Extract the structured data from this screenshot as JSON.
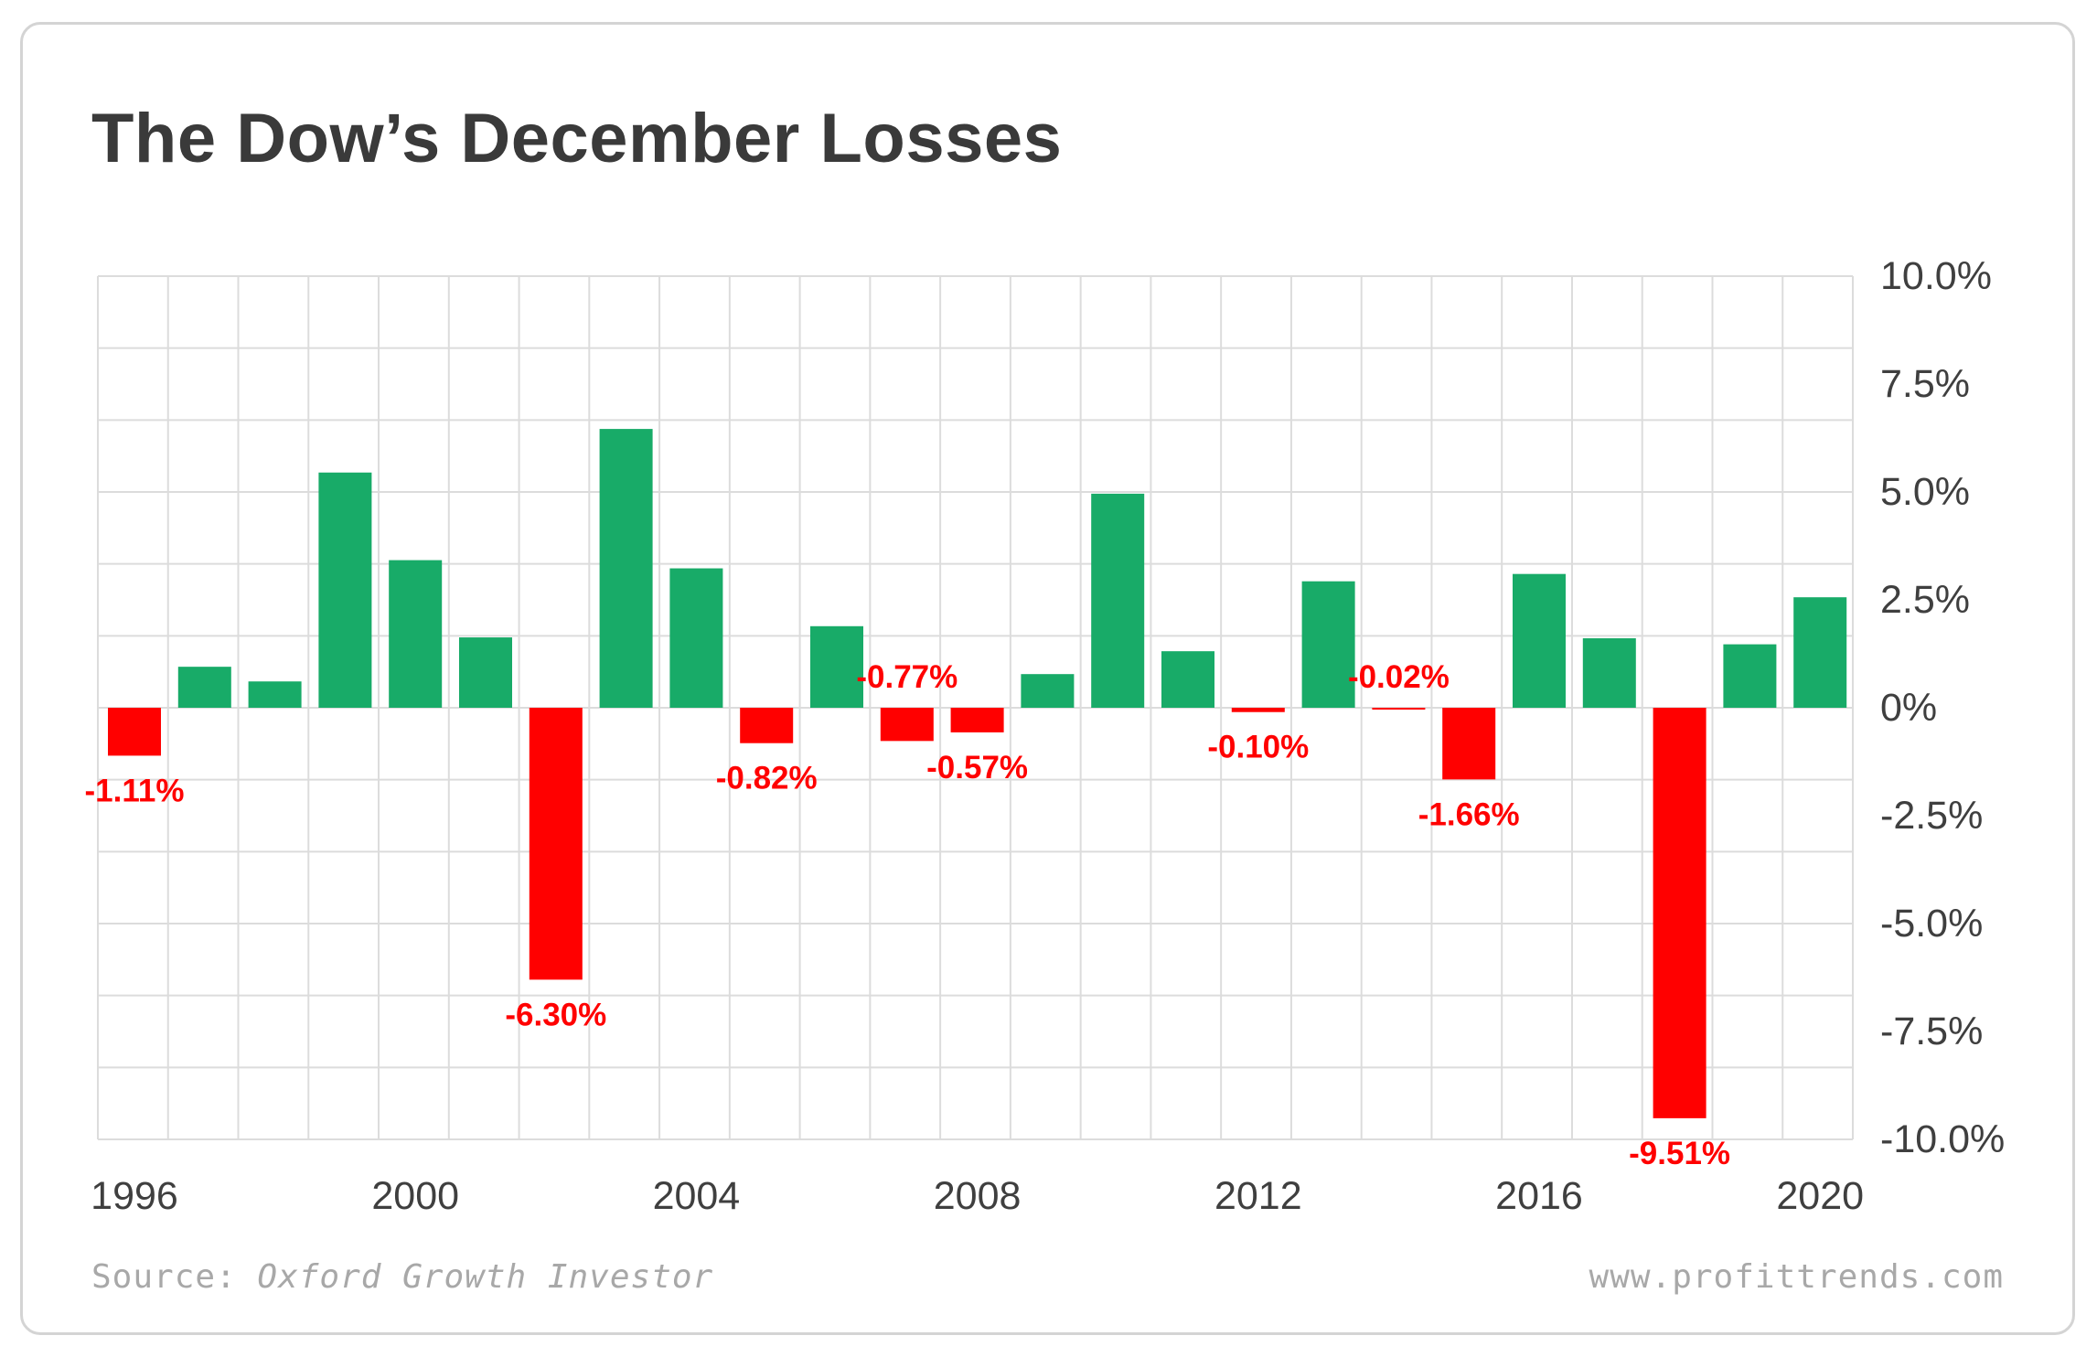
{
  "title": "The Dow’s December Losses",
  "footer": {
    "source_prefix": "Source: ",
    "source_name": "Oxford Growth Investor",
    "website": "www.profittrends.com"
  },
  "colors": {
    "positive": "#18ab68",
    "negative": "#ff0000",
    "grid": "#dcdcdc",
    "axis_text": "#3f3f3f"
  },
  "chart_data": {
    "type": "bar",
    "title": "The Dow’s December Losses",
    "xlabel": "",
    "ylabel": "",
    "ylim": [
      -10,
      10
    ],
    "y_ticks": [
      10,
      7.5,
      5,
      2.5,
      0,
      -2.5,
      -5,
      -7.5,
      -10
    ],
    "y_tick_labels": [
      "10.0%",
      "7.5%",
      "5.0%",
      "2.5%",
      "0%",
      "-2.5%",
      "-5.0%",
      "-7.5%",
      "-10.0%"
    ],
    "y_axis_position": "right",
    "grid": true,
    "categories": [
      1996,
      1997,
      1998,
      1999,
      2000,
      2001,
      2002,
      2003,
      2004,
      2005,
      2006,
      2007,
      2008,
      2009,
      2010,
      2011,
      2012,
      2013,
      2014,
      2015,
      2016,
      2017,
      2018,
      2019,
      2020
    ],
    "x_tick_labels": [
      "1996",
      "2000",
      "2004",
      "2008",
      "2012",
      "2016",
      "2020"
    ],
    "values": [
      -1.11,
      0.95,
      0.61,
      5.45,
      3.42,
      1.63,
      -6.3,
      6.46,
      3.23,
      -0.82,
      1.89,
      -0.77,
      -0.57,
      0.78,
      4.96,
      1.31,
      -0.1,
      2.93,
      -0.02,
      -1.66,
      3.1,
      1.61,
      -9.51,
      1.47,
      2.56
    ],
    "data_labels": [
      {
        "year": 1996,
        "text": "-1.11%"
      },
      {
        "year": 2002,
        "text": "-6.30%"
      },
      {
        "year": 2005,
        "text": "-0.82%"
      },
      {
        "year": 2007,
        "text": "-0.77%"
      },
      {
        "year": 2008,
        "text": "-0.57%"
      },
      {
        "year": 2012,
        "text": "-0.10%"
      },
      {
        "year": 2014,
        "text": "-0.02%"
      },
      {
        "year": 2015,
        "text": "-1.66%"
      },
      {
        "year": 2018,
        "text": "-9.51%"
      }
    ]
  }
}
